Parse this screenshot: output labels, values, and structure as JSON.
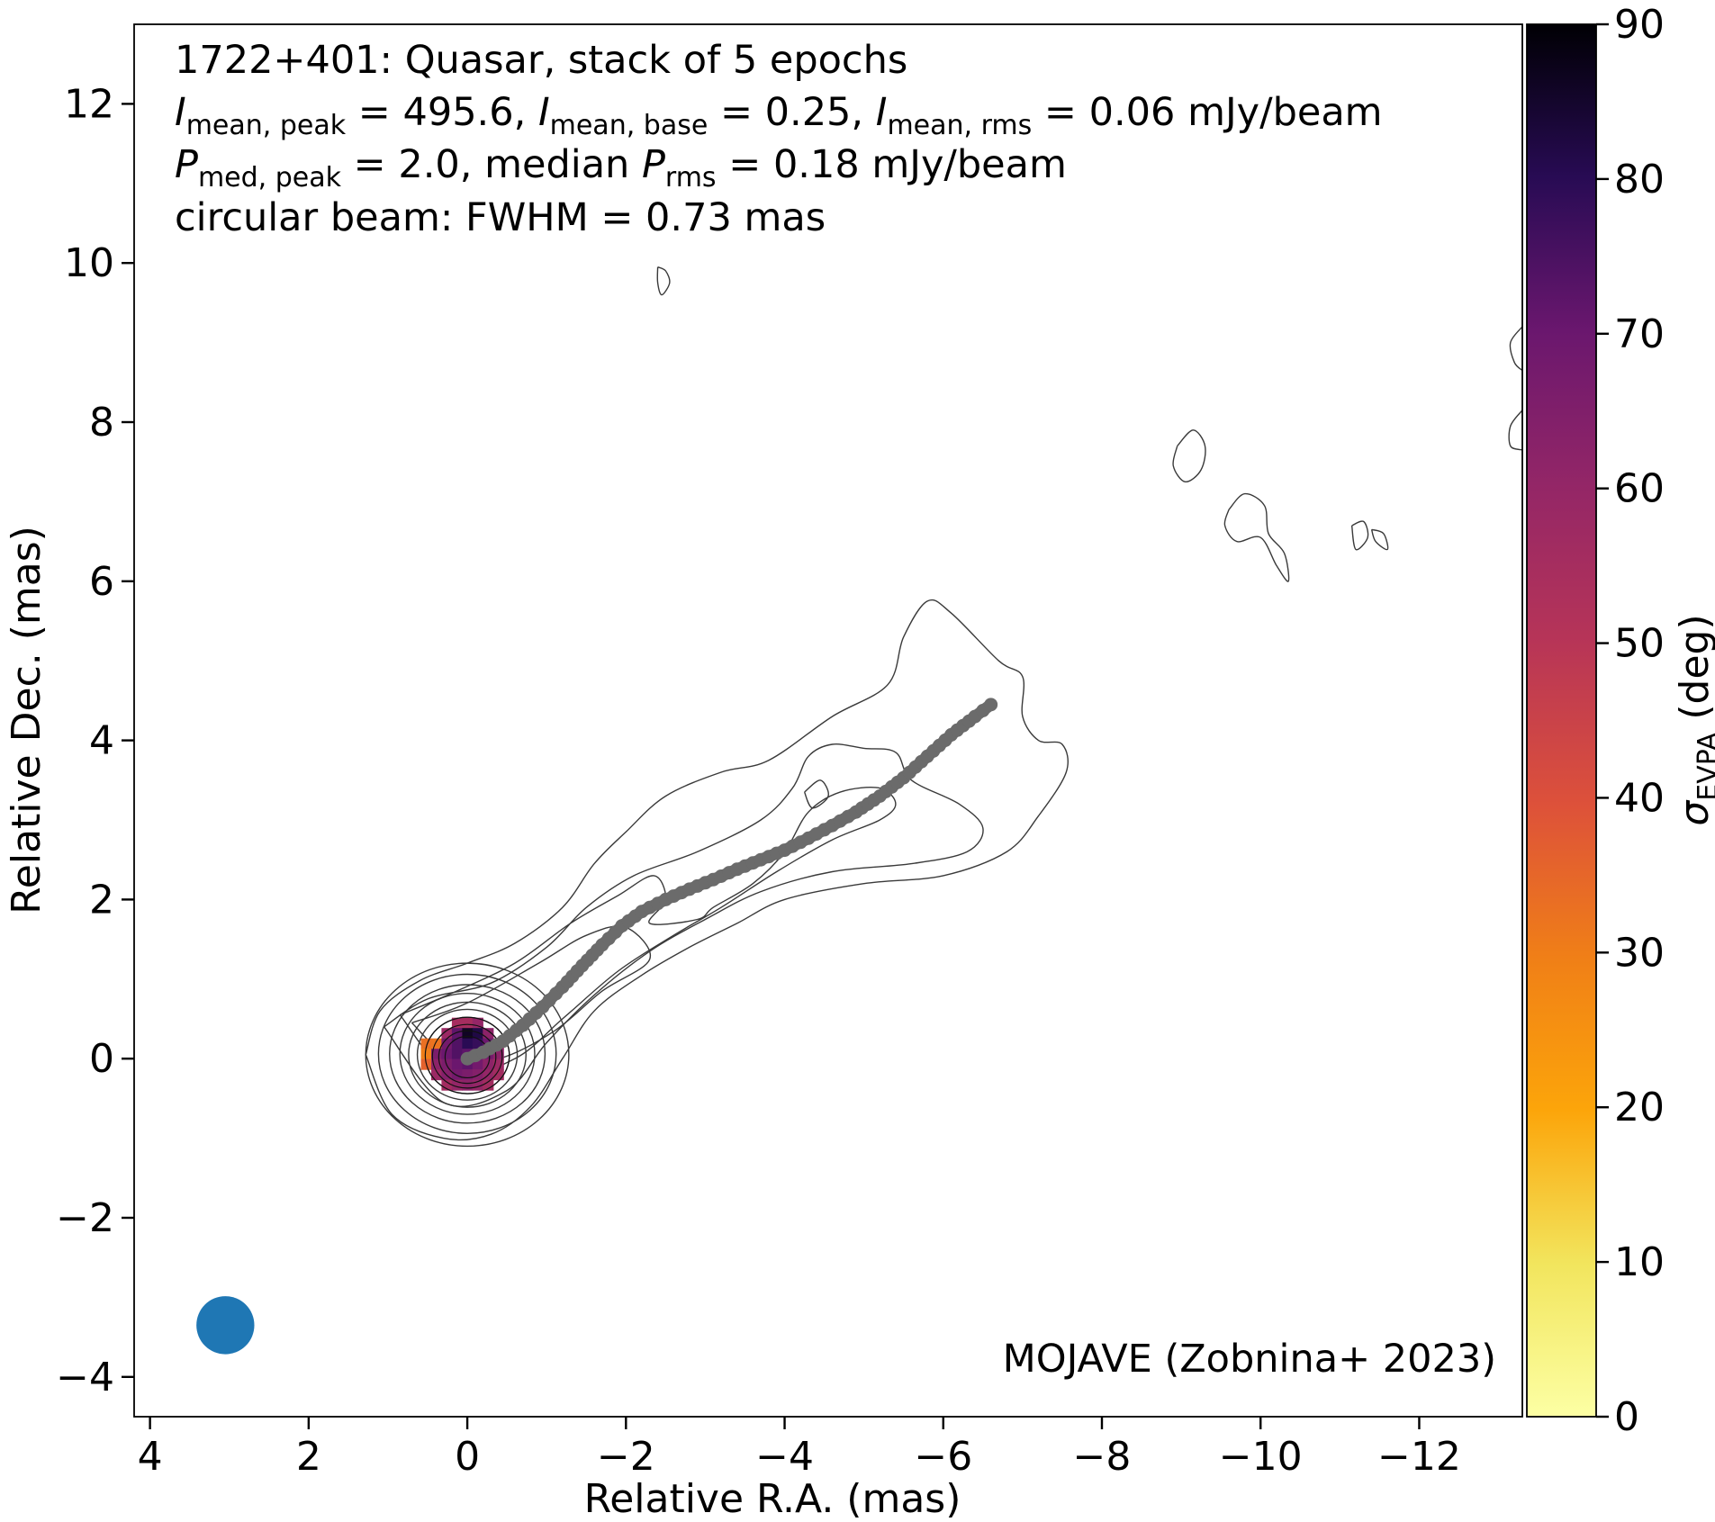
{
  "chart_data": {
    "type": "scatter",
    "source": "1722+401",
    "info": {
      "line1": "1722+401: Quasar, stack of 5 epochs",
      "line2": {
        "i_mean_peak": "495.6",
        "i_mean_base": "0.25",
        "i_mean_rms": "0.06",
        "unit": "mJy/beam",
        "sub_peak": "mean, peak",
        "sub_base": "mean, base",
        "sub_rms": "mean, rms"
      },
      "line3": {
        "p_med_peak": "2.0",
        "p_rms": "0.18",
        "unit": "mJy/beam",
        "sub_peak": "med, peak",
        "sub_rms": "rms",
        "median_word": "median"
      },
      "line4": "circular beam: FWHM = 0.73 mas"
    },
    "credit": "MOJAVE (Zobnina+ 2023)",
    "xlabel": "Relative R.A. (mas)",
    "ylabel": "Relative Dec. (mas)",
    "xlim": [
      4.2,
      -13.3
    ],
    "ylim": [
      -4.5,
      13.0
    ],
    "xticks": [
      4,
      2,
      0,
      -2,
      -4,
      -6,
      -8,
      -10,
      -12
    ],
    "yticks": [
      -4,
      -2,
      0,
      2,
      4,
      6,
      8,
      10,
      12
    ],
    "colorbar": {
      "label_symbol": "σ",
      "label_sub": "EVPA",
      "label_unit": " (deg)",
      "range": [
        0,
        90
      ],
      "ticks": [
        0,
        10,
        20,
        30,
        40,
        50,
        60,
        70,
        80,
        90
      ],
      "cmap": "inferno_r"
    },
    "ridgeline": {
      "color": "#6b6b6b",
      "points": [
        [
          0,
          0
        ],
        [
          -0.2,
          0.08
        ],
        [
          -0.45,
          0.22
        ],
        [
          -0.7,
          0.42
        ],
        [
          -0.95,
          0.65
        ],
        [
          -1.2,
          0.9
        ],
        [
          -1.45,
          1.17
        ],
        [
          -1.7,
          1.43
        ],
        [
          -1.95,
          1.67
        ],
        [
          -2.2,
          1.85
        ],
        [
          -2.5,
          2.0
        ],
        [
          -2.8,
          2.13
        ],
        [
          -3.1,
          2.25
        ],
        [
          -3.4,
          2.38
        ],
        [
          -3.7,
          2.5
        ],
        [
          -4.0,
          2.62
        ],
        [
          -4.3,
          2.77
        ],
        [
          -4.6,
          2.93
        ],
        [
          -4.9,
          3.1
        ],
        [
          -5.2,
          3.3
        ],
        [
          -5.5,
          3.53
        ],
        [
          -5.8,
          3.8
        ],
        [
          -6.1,
          4.07
        ],
        [
          -6.4,
          4.3
        ],
        [
          -6.6,
          4.45
        ]
      ]
    },
    "beam": {
      "x": 3.05,
      "y": -3.35,
      "fwhm": 0.73,
      "color": "#1f77b4"
    },
    "evpa_pixels": {
      "pixel_size": 0.13,
      "cells": [
        [
          0.0,
          0.45,
          55
        ],
        [
          0.13,
          0.45,
          55
        ],
        [
          -0.13,
          0.45,
          60
        ],
        [
          0.26,
          0.32,
          58
        ],
        [
          0.13,
          0.32,
          72
        ],
        [
          0.0,
          0.32,
          86
        ],
        [
          -0.13,
          0.32,
          82
        ],
        [
          -0.26,
          0.32,
          62
        ],
        [
          0.52,
          0.19,
          33
        ],
        [
          0.39,
          0.19,
          32
        ],
        [
          0.26,
          0.19,
          68
        ],
        [
          0.13,
          0.19,
          74
        ],
        [
          0.0,
          0.19,
          80
        ],
        [
          -0.13,
          0.19,
          78
        ],
        [
          -0.26,
          0.19,
          70
        ],
        [
          -0.39,
          0.19,
          60
        ],
        [
          0.52,
          0.06,
          30
        ],
        [
          0.39,
          0.06,
          66
        ],
        [
          0.26,
          0.06,
          70
        ],
        [
          0.13,
          0.06,
          74
        ],
        [
          0.0,
          0.06,
          72
        ],
        [
          -0.13,
          0.06,
          70
        ],
        [
          -0.26,
          0.06,
          68
        ],
        [
          -0.39,
          0.06,
          62
        ],
        [
          0.52,
          -0.07,
          36
        ],
        [
          0.39,
          -0.07,
          62
        ],
        [
          0.26,
          -0.07,
          66
        ],
        [
          0.13,
          -0.07,
          70
        ],
        [
          0.0,
          -0.07,
          72
        ],
        [
          -0.13,
          -0.07,
          68
        ],
        [
          -0.26,
          -0.07,
          62
        ],
        [
          -0.39,
          -0.07,
          58
        ],
        [
          0.39,
          -0.2,
          58
        ],
        [
          0.26,
          -0.2,
          64
        ],
        [
          0.13,
          -0.2,
          68
        ],
        [
          0.0,
          -0.2,
          66
        ],
        [
          -0.13,
          -0.2,
          64
        ],
        [
          -0.26,
          -0.2,
          60
        ],
        [
          -0.39,
          -0.2,
          56
        ],
        [
          0.26,
          -0.33,
          56
        ],
        [
          0.13,
          -0.33,
          60
        ],
        [
          0.0,
          -0.33,
          62
        ],
        [
          -0.13,
          -0.33,
          60
        ],
        [
          -0.26,
          -0.33,
          56
        ]
      ]
    },
    "core_contours": [
      [
        0.0,
        0.05,
        1.28,
        1.15
      ],
      [
        0.0,
        0.06,
        1.12,
        1.0
      ],
      [
        0.0,
        0.06,
        0.98,
        0.87
      ],
      [
        0.0,
        0.06,
        0.85,
        0.76
      ],
      [
        0.0,
        0.05,
        0.74,
        0.66
      ],
      [
        0.0,
        0.05,
        0.63,
        0.57
      ],
      [
        0.0,
        0.04,
        0.53,
        0.48
      ],
      [
        0.0,
        0.03,
        0.44,
        0.4
      ],
      [
        0.0,
        0.02,
        0.36,
        0.33
      ],
      [
        0.0,
        0.02,
        0.28,
        0.26
      ]
    ],
    "jet_contours": [
      [
        [
          1.28,
          0.05
        ],
        [
          1.1,
          0.6
        ],
        [
          0.6,
          0.98
        ],
        [
          0.0,
          1.2
        ],
        [
          -0.6,
          1.45
        ],
        [
          -1.2,
          1.9
        ],
        [
          -1.6,
          2.45
        ],
        [
          -2.0,
          2.85
        ],
        [
          -2.5,
          3.3
        ],
        [
          -3.2,
          3.6
        ],
        [
          -3.8,
          3.75
        ],
        [
          -4.6,
          4.3
        ],
        [
          -5.3,
          4.7
        ],
        [
          -5.5,
          5.3
        ],
        [
          -5.8,
          5.75
        ],
        [
          -6.1,
          5.6
        ],
        [
          -6.7,
          5.0
        ],
        [
          -7.0,
          4.8
        ],
        [
          -7.0,
          4.3
        ],
        [
          -7.2,
          4.0
        ],
        [
          -7.5,
          3.95
        ],
        [
          -7.55,
          3.6
        ],
        [
          -7.2,
          3.05
        ],
        [
          -6.8,
          2.6
        ],
        [
          -6.0,
          2.3
        ],
        [
          -5.0,
          2.2
        ],
        [
          -4.0,
          2.0
        ],
        [
          -3.4,
          1.7
        ],
        [
          -2.8,
          1.4
        ],
        [
          -2.2,
          1.05
        ],
        [
          -1.6,
          0.6
        ],
        [
          -1.2,
          0.0
        ],
        [
          -0.8,
          -0.6
        ],
        [
          -0.3,
          -0.95
        ],
        [
          0.3,
          -1.0
        ],
        [
          0.95,
          -0.7
        ],
        [
          1.28,
          0.05
        ]
      ],
      [
        [
          1.05,
          0.4
        ],
        [
          0.5,
          0.75
        ],
        [
          -0.3,
          0.95
        ],
        [
          -1.0,
          1.4
        ],
        [
          -1.5,
          1.9
        ],
        [
          -2.1,
          2.3
        ],
        [
          -2.9,
          2.6
        ],
        [
          -3.7,
          3.0
        ],
        [
          -4.1,
          3.4
        ],
        [
          -4.3,
          3.8
        ],
        [
          -4.6,
          3.95
        ],
        [
          -5.0,
          3.9
        ],
        [
          -5.4,
          3.85
        ],
        [
          -5.6,
          3.5
        ],
        [
          -6.2,
          3.2
        ],
        [
          -6.5,
          2.9
        ],
        [
          -6.3,
          2.6
        ],
        [
          -5.6,
          2.45
        ],
        [
          -4.6,
          2.35
        ],
        [
          -3.7,
          2.1
        ],
        [
          -3.0,
          1.75
        ],
        [
          -2.3,
          1.35
        ],
        [
          -1.6,
          0.8
        ],
        [
          -1.0,
          0.2
        ],
        [
          -0.5,
          -0.4
        ],
        [
          0.3,
          -0.55
        ],
        [
          1.05,
          0.4
        ]
      ],
      [
        [
          0.85,
          0.55
        ],
        [
          0.2,
          0.82
        ],
        [
          -0.6,
          1.2
        ],
        [
          -1.3,
          1.7
        ],
        [
          -1.9,
          2.05
        ],
        [
          -2.35,
          2.3
        ],
        [
          -2.5,
          2.0
        ],
        [
          -2.3,
          1.7
        ],
        [
          -2.9,
          1.75
        ],
        [
          -3.1,
          1.9
        ],
        [
          -3.6,
          2.2
        ],
        [
          -4.0,
          2.6
        ],
        [
          -4.3,
          3.1
        ],
        [
          -4.7,
          3.35
        ],
        [
          -5.2,
          3.4
        ],
        [
          -5.4,
          3.2
        ],
        [
          -5.2,
          3.0
        ],
        [
          -4.6,
          2.75
        ],
        [
          -3.9,
          2.35
        ],
        [
          -3.2,
          1.9
        ],
        [
          -2.6,
          1.55
        ],
        [
          -1.9,
          1.1
        ],
        [
          -1.2,
          0.5
        ],
        [
          -0.6,
          0.0
        ],
        [
          0.2,
          -0.2
        ],
        [
          0.85,
          0.55
        ]
      ],
      [
        [
          0.7,
          0.45
        ],
        [
          0.0,
          0.7
        ],
        [
          -0.9,
          1.2
        ],
        [
          -1.5,
          1.55
        ],
        [
          -2.0,
          1.65
        ],
        [
          -2.3,
          1.25
        ],
        [
          -1.7,
          0.85
        ],
        [
          -1.1,
          0.35
        ],
        [
          -0.4,
          0.0
        ],
        [
          0.2,
          0.0
        ],
        [
          0.7,
          0.45
        ]
      ],
      [
        [
          -4.25,
          3.35
        ],
        [
          -4.45,
          3.5
        ],
        [
          -4.55,
          3.3
        ],
        [
          -4.35,
          3.15
        ],
        [
          -4.25,
          3.35
        ]
      ]
    ],
    "blob_contours": [
      [
        [
          -8.95,
          7.7
        ],
        [
          -9.15,
          7.9
        ],
        [
          -9.3,
          7.7
        ],
        [
          -9.25,
          7.4
        ],
        [
          -9.05,
          7.25
        ],
        [
          -8.9,
          7.45
        ],
        [
          -8.95,
          7.7
        ]
      ],
      [
        [
          -9.6,
          6.9
        ],
        [
          -9.8,
          7.1
        ],
        [
          -10.05,
          6.95
        ],
        [
          -10.1,
          6.6
        ],
        [
          -10.3,
          6.35
        ],
        [
          -10.35,
          6.0
        ],
        [
          -10.2,
          6.2
        ],
        [
          -10.0,
          6.55
        ],
        [
          -9.7,
          6.5
        ],
        [
          -9.55,
          6.7
        ],
        [
          -9.6,
          6.9
        ]
      ],
      [
        [
          -11.15,
          6.7
        ],
        [
          -11.3,
          6.75
        ],
        [
          -11.35,
          6.55
        ],
        [
          -11.2,
          6.4
        ],
        [
          -11.15,
          6.7
        ]
      ],
      [
        [
          -11.4,
          6.65
        ],
        [
          -11.55,
          6.6
        ],
        [
          -11.6,
          6.4
        ],
        [
          -11.45,
          6.5
        ],
        [
          -11.4,
          6.65
        ]
      ],
      [
        [
          -13.3,
          9.2
        ],
        [
          -13.15,
          9.0
        ],
        [
          -13.2,
          8.75
        ],
        [
          -13.3,
          8.65
        ]
      ],
      [
        [
          -13.3,
          8.15
        ],
        [
          -13.15,
          7.95
        ],
        [
          -13.15,
          7.7
        ],
        [
          -13.3,
          7.65
        ]
      ],
      [
        [
          -2.4,
          9.95
        ],
        [
          -2.5,
          9.9
        ],
        [
          -2.55,
          9.75
        ],
        [
          -2.45,
          9.6
        ],
        [
          -2.4,
          9.75
        ],
        [
          -2.4,
          9.95
        ]
      ]
    ]
  }
}
